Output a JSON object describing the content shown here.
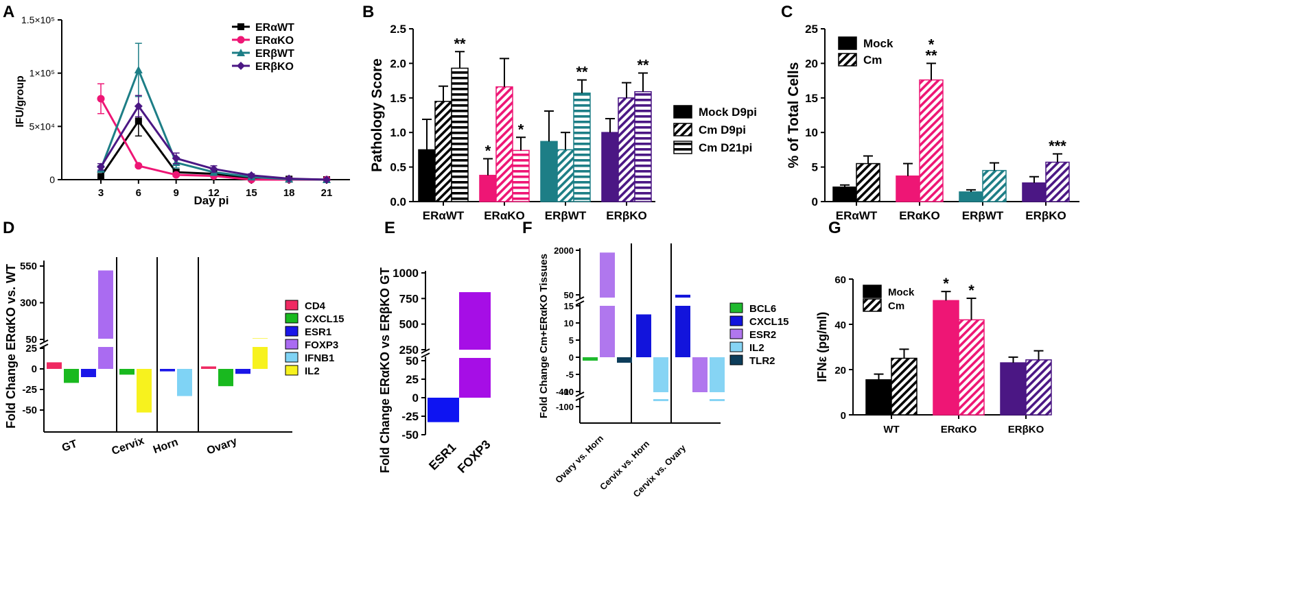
{
  "figure": {
    "panel_letters": [
      "A",
      "B",
      "C",
      "D",
      "E",
      "F",
      "G"
    ]
  },
  "colors": {
    "black": "#000000",
    "erako": "#ee1675",
    "erbwt": "#1d7e86",
    "erbko": "#4b1784",
    "cd4": "#ef2a62",
    "cxcl15": "#19b91f",
    "esr1": "#1a16e8",
    "foxp3": "#aa6bf1",
    "ifnb1": "#7fd3f5",
    "il2": "#f7f21e",
    "e_esr1": "#0e14f2",
    "e_foxp3": "#a60ee6",
    "f_bcl6": "#1fba2e",
    "f_cxcl15": "#1214dc",
    "f_esr2": "#b077ee",
    "f_il2": "#86d4f4",
    "f_tlr2": "#0d3d5a"
  },
  "chart_data": [
    {
      "panel": "A",
      "type": "line",
      "title": "",
      "xlabel": "Day pi",
      "ylabel": "IFU/group",
      "x": [
        3,
        6,
        9,
        12,
        15,
        18,
        21
      ],
      "xticks": [
        "3",
        "6",
        "9",
        "12",
        "15",
        "18",
        "21"
      ],
      "ylim": [
        0,
        150000
      ],
      "yticks": [
        {
          "value": 0,
          "label": "0"
        },
        {
          "value": 50000,
          "label": "5×10⁴"
        },
        {
          "value": 100000,
          "label": "1×10⁵"
        },
        {
          "value": 150000,
          "label": "1.5×10⁵"
        }
      ],
      "legend": "top-right",
      "series": [
        {
          "name": "ERαWT",
          "color": "#000000",
          "marker": "square",
          "values": [
            3000,
            55000,
            7000,
            5500,
            1500,
            500,
            0
          ],
          "errors": [
            1500,
            14000,
            2500,
            2000,
            1000,
            500,
            0
          ]
        },
        {
          "name": "ERαKO",
          "color": "#ee1675",
          "marker": "circle",
          "values": [
            76000,
            13000,
            4500,
            3500,
            0,
            0,
            0
          ],
          "errors": [
            14000,
            1500,
            1500,
            1000,
            0,
            0,
            0
          ]
        },
        {
          "name": "ERβWT",
          "color": "#1d7e86",
          "marker": "triangle",
          "values": [
            10000,
            103000,
            16000,
            7000,
            2500,
            500,
            0
          ],
          "errors": [
            3000,
            25000,
            5000,
            3000,
            1500,
            500,
            0
          ]
        },
        {
          "name": "ERβKO",
          "color": "#4b1784",
          "marker": "diamond",
          "values": [
            12000,
            69000,
            20000,
            10000,
            4000,
            1000,
            0
          ],
          "errors": [
            3000,
            10000,
            5000,
            3000,
            1500,
            500,
            0
          ]
        }
      ]
    },
    {
      "panel": "B",
      "type": "bar",
      "title": "",
      "xlabel": "",
      "ylabel": "Pathology Score",
      "categories": [
        "ERαWT",
        "ERαKO",
        "ERβWT",
        "ERβKO"
      ],
      "category_colors": [
        "#000000",
        "#ee1675",
        "#1d7e86",
        "#4b1784"
      ],
      "ylim": [
        0,
        2.5
      ],
      "yticks": [
        "0.0",
        "0.5",
        "1.0",
        "1.5",
        "2.0",
        "2.5"
      ],
      "legend": "right",
      "series": [
        {
          "name": "Mock D9pi",
          "pattern": "solid",
          "values": [
            0.75,
            0.38,
            0.87,
            1.0
          ],
          "errors": [
            0.44,
            0.24,
            0.44,
            0.2
          ],
          "annotations": [
            "",
            "*",
            "",
            ""
          ]
        },
        {
          "name": "Cm D9pi",
          "pattern": "diagonal",
          "values": [
            1.45,
            1.66,
            0.75,
            1.5
          ],
          "errors": [
            0.22,
            0.41,
            0.25,
            0.22
          ],
          "annotations": [
            "",
            "",
            "",
            ""
          ]
        },
        {
          "name": "Cm D21pi",
          "pattern": "horizontal",
          "values": [
            1.93,
            0.74,
            1.57,
            1.59
          ],
          "errors": [
            0.24,
            0.19,
            0.19,
            0.27
          ],
          "annotations": [
            "**",
            "*",
            "**",
            "**"
          ]
        }
      ]
    },
    {
      "panel": "C",
      "type": "bar",
      "title": "",
      "xlabel": "",
      "ylabel": "% of Total Cells",
      "categories": [
        "ERαWT",
        "ERαKO",
        "ERβWT",
        "ERβKO"
      ],
      "category_colors": [
        "#000000",
        "#ee1675",
        "#1d7e86",
        "#4b1784"
      ],
      "ylim": [
        0,
        25
      ],
      "yticks": [
        "0",
        "5",
        "10",
        "15",
        "20",
        "25"
      ],
      "legend": "top-left",
      "series": [
        {
          "name": "Mock",
          "pattern": "solid",
          "values": [
            2.1,
            3.7,
            1.4,
            2.7
          ],
          "errors": [
            0.3,
            1.8,
            0.3,
            0.9
          ],
          "annotations": [
            "",
            "",
            "",
            ""
          ]
        },
        {
          "name": "Cm",
          "pattern": "diagonal",
          "values": [
            5.5,
            17.6,
            4.5,
            5.7
          ],
          "errors": [
            1.1,
            2.4,
            1.1,
            1.2
          ],
          "annotations": [
            "",
            "*\n**",
            "",
            "***"
          ]
        }
      ]
    },
    {
      "panel": "D",
      "type": "bar",
      "title": "",
      "xlabel": "",
      "ylabel": "Fold Change ERαKO vs. WT",
      "axis_break": "between 25 and 50",
      "yticks": [
        "-50",
        "-25",
        "0",
        "25",
        "50",
        "300",
        "550"
      ],
      "categories": [
        "GT",
        "Cervix",
        "Horn",
        "Ovary"
      ],
      "legend": "right",
      "series": [
        {
          "name": "CD4",
          "color": "#ef2a62",
          "values": [
            8,
            null,
            null,
            3
          ]
        },
        {
          "name": "CXCL15",
          "color": "#19b91f",
          "values": [
            -17,
            -7,
            null,
            -21
          ]
        },
        {
          "name": "ESR1",
          "color": "#1a16e8",
          "values": [
            -10,
            null,
            -3,
            -6
          ]
        },
        {
          "name": "FOXP3",
          "color": "#aa6bf1",
          "values": [
            520,
            null,
            null,
            null
          ]
        },
        {
          "name": "IFNB1",
          "color": "#7fd3f5",
          "values": [
            null,
            null,
            -33,
            null
          ]
        },
        {
          "name": "IL2",
          "color": "#f7f21e",
          "values": [
            null,
            -53,
            null,
            58
          ]
        }
      ]
    },
    {
      "panel": "E",
      "type": "bar",
      "title": "",
      "xlabel": "",
      "ylabel": "Fold Change ERαKO vs ERβKO GT",
      "axis_break": "between 50 and 250",
      "yticks": [
        "-50",
        "-25",
        "0",
        "25",
        "50",
        "250",
        "500",
        "750",
        "1000"
      ],
      "categories": [
        "ESR1",
        "FOXP3"
      ],
      "values": [
        -33,
        812
      ],
      "colors": [
        "#0e14f2",
        "#a60ee6"
      ]
    },
    {
      "panel": "F",
      "type": "bar",
      "title": "",
      "xlabel": "",
      "ylabel": "Fold Change Cm+ERαKO Tissues",
      "axis_breaks": [
        "between 15 and 50",
        "between -10 and -100"
      ],
      "yticks": [
        "-400",
        "-100",
        "-10",
        "-5",
        "0",
        "5",
        "10",
        "15",
        "50",
        "2000"
      ],
      "categories": [
        "Ovary vs. Horn",
        "Cervix vs. Horn",
        "Cervix vs. Ovary"
      ],
      "legend": "right",
      "series": [
        {
          "name": "BCL6",
          "color": "#1fba2e",
          "values": [
            -1,
            null,
            null
          ]
        },
        {
          "name": "CXCL15",
          "color": "#1214dc",
          "values": [
            null,
            12.5,
            55
          ]
        },
        {
          "name": "ESR2",
          "color": "#b077ee",
          "values": [
            1900,
            null,
            -290
          ]
        },
        {
          "name": "IL2",
          "color": "#86d4f4",
          "values": [
            null,
            -80,
            -80
          ]
        },
        {
          "name": "TLR2",
          "color": "#0d3d5a",
          "values": [
            -1.6,
            null,
            null
          ]
        }
      ]
    },
    {
      "panel": "G",
      "type": "bar",
      "title": "",
      "xlabel": "",
      "ylabel": "IFNε (pg/ml)",
      "categories": [
        "WT",
        "ERαKO",
        "ERβKO"
      ],
      "category_colors": [
        "#000000",
        "#ee1675",
        "#4b1784"
      ],
      "ylim": [
        0,
        60
      ],
      "yticks": [
        "0",
        "20",
        "40",
        "60"
      ],
      "legend": "top-left",
      "series": [
        {
          "name": "Mock",
          "pattern": "solid",
          "values": [
            15.5,
            50.5,
            23
          ],
          "errors": [
            2.5,
            4,
            2.5
          ],
          "annotations": [
            "",
            "*",
            ""
          ]
        },
        {
          "name": "Cm",
          "pattern": "diagonal",
          "values": [
            25,
            42,
            24.3
          ],
          "errors": [
            4,
            9.5,
            4
          ],
          "annotations": [
            "",
            "*",
            ""
          ]
        }
      ]
    }
  ]
}
